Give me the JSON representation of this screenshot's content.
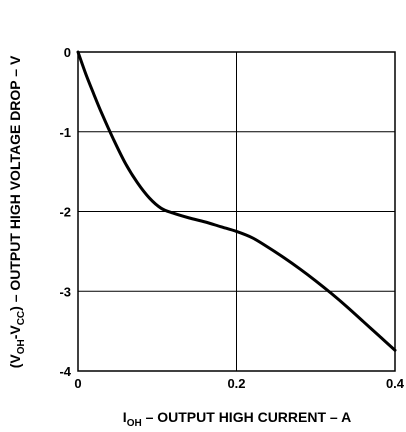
{
  "chart_data": {
    "type": "line",
    "title": "",
    "xlabel": {
      "main": "I",
      "sub": "OH",
      "rest": " – OUTPUT HIGH CURRENT – A"
    },
    "ylabel": {
      "open": "(V",
      "sub1": "OH",
      "dash": "-V",
      "sub2": "CC",
      "rest": ") – OUTPUT HIGH VOLTAGE DROP – V"
    },
    "xlim": [
      0,
      0.4
    ],
    "ylim": [
      -4,
      0
    ],
    "x_ticks": [
      0,
      0.2,
      0.4
    ],
    "x_tick_labels": [
      "0",
      "0.2",
      "0.4"
    ],
    "y_ticks": [
      0,
      -1,
      -2,
      -3,
      -4
    ],
    "y_tick_labels": [
      "0",
      "-1",
      "-2",
      "-3",
      "-4"
    ],
    "grid": true,
    "series": [
      {
        "x": [
          0,
          0.01,
          0.02,
          0.03,
          0.045,
          0.06,
          0.075,
          0.09,
          0.105,
          0.12,
          0.14,
          0.16,
          0.18,
          0.2,
          0.22,
          0.24,
          0.26,
          0.28,
          0.3,
          0.32,
          0.34,
          0.36,
          0.38,
          0.4
        ],
        "y": [
          0,
          -0.28,
          -0.53,
          -0.77,
          -1.1,
          -1.4,
          -1.64,
          -1.83,
          -1.96,
          -2.02,
          -2.08,
          -2.13,
          -2.19,
          -2.25,
          -2.33,
          -2.45,
          -2.58,
          -2.72,
          -2.87,
          -3.03,
          -3.2,
          -3.38,
          -3.56,
          -3.74
        ],
        "color": "#000000"
      }
    ]
  }
}
